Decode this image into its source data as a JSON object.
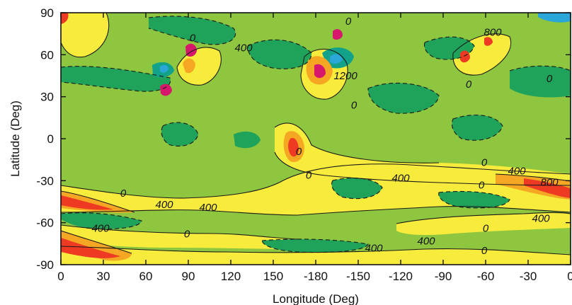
{
  "chart_data": {
    "type": "heatmap",
    "title": "",
    "xlabel": "Longitude (Deg)",
    "ylabel": "Latitude (Deg)",
    "x_ticks": [
      "0",
      "30",
      "60",
      "90",
      "120",
      "150",
      "-180",
      "-150",
      "-120",
      "-90",
      "-60",
      "-30",
      "0"
    ],
    "y_ticks": [
      "90",
      "60",
      "30",
      "0",
      "-30",
      "-60",
      "-90"
    ],
    "x_tick_values": [
      0,
      30,
      60,
      90,
      120,
      150,
      180,
      210,
      240,
      270,
      300,
      330,
      360
    ],
    "y_tick_values": [
      90,
      60,
      30,
      0,
      -30,
      -60,
      -90
    ],
    "xlim": [
      0,
      360
    ],
    "ylim": [
      -90,
      90
    ],
    "grid": false,
    "colors": {
      "background_level": "#8ec63f",
      "negative_1": "#1fa25a",
      "negative_2": "#12a28a",
      "negative_3": "#2aa6d8",
      "positive_1": "#f7ec3c",
      "positive_2": "#f5a623",
      "positive_3": "#ee3a23",
      "positive_4": "#d6176b"
    },
    "contour_labels": [
      {
        "text": "0",
        "lon": 93,
        "lat": 72
      },
      {
        "text": "400",
        "lon": 129,
        "lat": 65
      },
      {
        "text": "0",
        "lon": 203,
        "lat": 84
      },
      {
        "text": "800",
        "lon": 305,
        "lat": 76
      },
      {
        "text": "1200",
        "lon": 201,
        "lat": 45
      },
      {
        "text": "0",
        "lon": 207,
        "lat": 24
      },
      {
        "text": "0",
        "lon": 288,
        "lat": 39
      },
      {
        "text": "0",
        "lon": 345,
        "lat": 43
      },
      {
        "text": "0",
        "lon": 168,
        "lat": -9
      },
      {
        "text": "0",
        "lon": 175,
        "lat": -26
      },
      {
        "text": "400",
        "lon": 240,
        "lat": -28
      },
      {
        "text": "0",
        "lon": 299,
        "lat": -17
      },
      {
        "text": "0",
        "lon": 297,
        "lat": -33
      },
      {
        "text": "400",
        "lon": 322,
        "lat": -23
      },
      {
        "text": "800",
        "lon": 345,
        "lat": -31
      },
      {
        "text": "0",
        "lon": 44,
        "lat": -39
      },
      {
        "text": "400",
        "lon": 73,
        "lat": -47
      },
      {
        "text": "400",
        "lon": 104,
        "lat": -49
      },
      {
        "text": "400",
        "lon": 28,
        "lat": -64
      },
      {
        "text": "0",
        "lon": 89,
        "lat": -68
      },
      {
        "text": "0",
        "lon": 300,
        "lat": -64
      },
      {
        "text": "400",
        "lon": 339,
        "lat": -57
      },
      {
        "text": "400",
        "lon": 221,
        "lat": -78
      },
      {
        "text": "400",
        "lon": 258,
        "lat": -73
      },
      {
        "text": "0",
        "lon": 299,
        "lat": -80
      }
    ]
  }
}
